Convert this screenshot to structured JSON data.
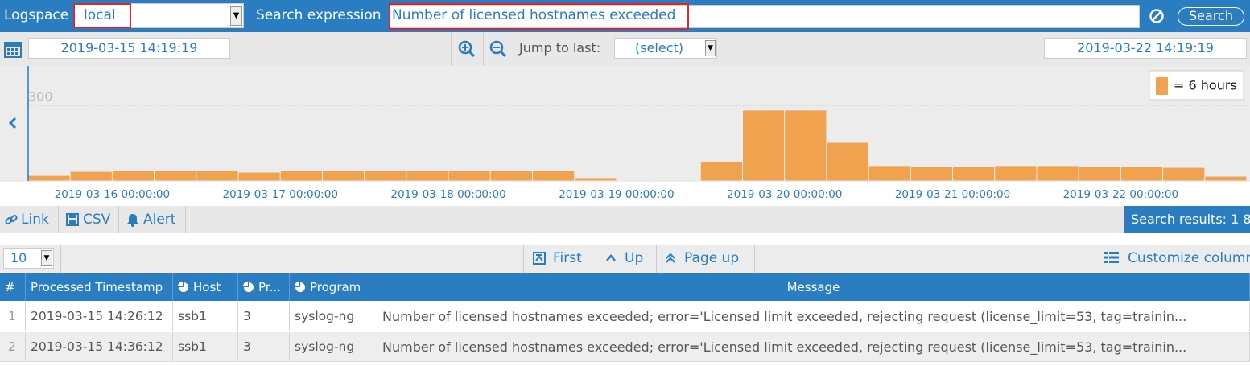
{
  "search_bar": {
    "logspace_label": "Logspace",
    "logspace_value": "local",
    "search_label": "Search expression",
    "search_value": "Number of licensed hostnames exceeded",
    "search_button": "Search"
  },
  "time_range": {
    "start": "2019-03-15 14:19:19",
    "end": "2019-03-22 14:19:19",
    "jump_label": "Jump to last:",
    "jump_value": "(select)"
  },
  "chart_data": {
    "type": "histogram",
    "bin_label": "= 6 hours",
    "color": "#f0a24e",
    "bins": [
      "2019-03-15 12:00:00",
      "2019-03-15 18:00:00",
      "2019-03-16 00:00:00",
      "2019-03-16 06:00:00",
      "2019-03-16 12:00:00",
      "2019-03-16 18:00:00",
      "2019-03-17 00:00:00",
      "2019-03-17 06:00:00",
      "2019-03-17 12:00:00",
      "2019-03-17 18:00:00",
      "2019-03-18 00:00:00",
      "2019-03-18 06:00:00",
      "2019-03-18 12:00:00",
      "2019-03-18 18:00:00",
      "2019-03-19 00:00:00",
      "2019-03-19 06:00:00",
      "2019-03-19 12:00:00",
      "2019-03-19 18:00:00",
      "2019-03-20 00:00:00",
      "2019-03-20 06:00:00",
      "2019-03-20 12:00:00",
      "2019-03-20 18:00:00",
      "2019-03-21 00:00:00",
      "2019-03-21 06:00:00",
      "2019-03-21 12:00:00",
      "2019-03-21 18:00:00",
      "2019-03-22 00:00:00",
      "2019-03-22 06:00:00",
      "2019-03-22 12:00:00",
      "2019-03-22 18:00:00"
    ],
    "values": [
      22,
      38,
      41,
      41,
      41,
      35,
      41,
      41,
      41,
      41,
      41,
      41,
      41,
      13,
      0,
      0,
      77,
      281,
      281,
      153,
      61,
      57,
      57,
      61,
      61,
      57,
      57,
      54,
      19
    ],
    "xlim": [
      "2019-03-15 12:00:00",
      "2019-03-22 18:00:00"
    ],
    "xticks": [
      "2019-03-16 00:00:00",
      "2019-03-17 00:00:00",
      "2019-03-18 00:00:00",
      "2019-03-19 00:00:00",
      "2019-03-20 00:00:00",
      "2019-03-21 00:00:00",
      "2019-03-22 00:00:00"
    ],
    "ylim": [
      0,
      456
    ],
    "yticks": [
      300
    ],
    "grid": true
  },
  "toolbar": {
    "link": "Link",
    "csv": "CSV",
    "alert": "Alert",
    "results": "Search results: 1 8"
  },
  "pager": {
    "page_size": "10",
    "first": "First",
    "up": "Up",
    "page_up": "Page up",
    "customize": "Customize columns"
  },
  "table": {
    "columns": [
      "#",
      "Processed Timestamp",
      "Host",
      "Pr...",
      "Program",
      "Message"
    ],
    "rows": [
      [
        "1",
        "2019-03-15 14:26:12",
        "ssb1",
        "3",
        "syslog-ng",
        "Number of licensed hostnames exceeded; error='Licensed limit exceeded, rejecting request (license_limit=53, tag=trainin..."
      ],
      [
        "2",
        "2019-03-15 14:36:12",
        "ssb1",
        "3",
        "syslog-ng",
        "Number of licensed hostnames exceeded; error='Licensed limit exceeded, rejecting request (license_limit=53, tag=trainin..."
      ]
    ]
  }
}
